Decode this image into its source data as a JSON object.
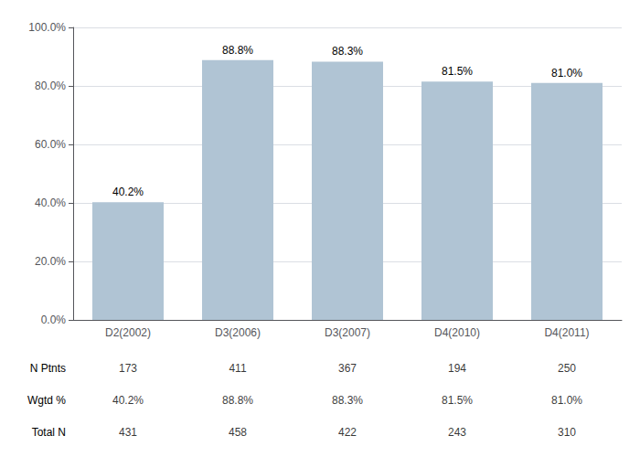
{
  "chart_data": {
    "type": "bar",
    "categories": [
      "D2(2002)",
      "D3(2006)",
      "D3(2007)",
      "D4(2010)",
      "D4(2011)"
    ],
    "values": [
      40.2,
      88.8,
      88.3,
      81.5,
      81.0
    ],
    "value_labels": [
      "40.2%",
      "88.8%",
      "88.3%",
      "81.5%",
      "81.0%"
    ],
    "data_labels": true,
    "color": "#b0c4d4",
    "ylim": [
      0,
      100
    ],
    "yticks": [
      {
        "value": 0,
        "label": "0.0%"
      },
      {
        "value": 20,
        "label": "20.0%"
      },
      {
        "value": 40,
        "label": "40.0%"
      },
      {
        "value": 60,
        "label": "60.0%"
      },
      {
        "value": 80,
        "label": "80.0%"
      },
      {
        "value": 100,
        "label": "100.0%"
      }
    ],
    "grid": true,
    "table": [
      {
        "name": "N Ptnts",
        "values": [
          173,
          411,
          367,
          194,
          250
        ]
      },
      {
        "name": "Wgtd %",
        "values": [
          40.2,
          88.8,
          88.3,
          81.5,
          81.0
        ],
        "value_labels": [
          "40.2%",
          "88.8%",
          "88.3%",
          "81.5%",
          "81.0%"
        ]
      },
      {
        "name": "Total N",
        "values": [
          431,
          458,
          422,
          243,
          310
        ]
      }
    ]
  }
}
